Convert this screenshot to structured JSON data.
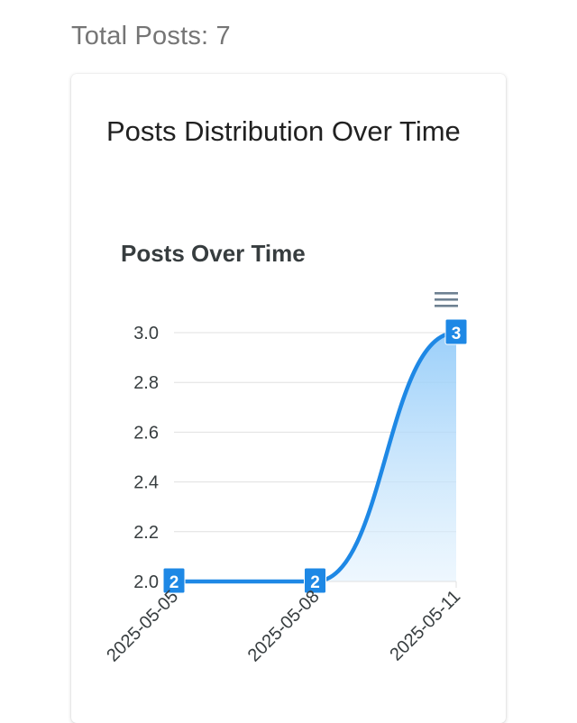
{
  "header": {
    "total_posts": "Total Posts: 7"
  },
  "card": {
    "title": "Posts Distribution Over Time"
  },
  "chart_data": {
    "type": "area",
    "title": "Posts Over Time",
    "categories": [
      "2025-05-05",
      "2025-05-08",
      "2025-05-11"
    ],
    "values": [
      2,
      2,
      3
    ],
    "yticks": [
      "3.0",
      "2.8",
      "2.6",
      "2.4",
      "2.2",
      "2.0"
    ],
    "ylim": [
      2.0,
      3.0
    ],
    "grid": true,
    "data_labels": true,
    "toolbar_icon": "menu-icon",
    "colors": {
      "line": "#1e88e5",
      "area_top": "#90caf9",
      "area_bottom": "#e3f2fd",
      "label_bg": "#1e88e5",
      "grid": "#e0e0e0"
    }
  }
}
